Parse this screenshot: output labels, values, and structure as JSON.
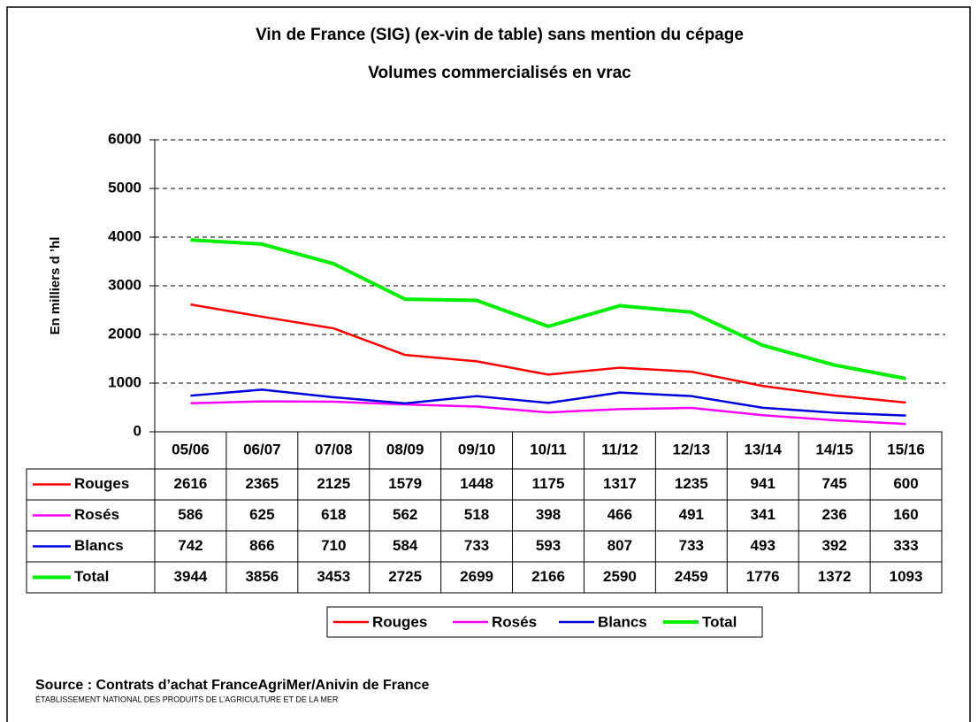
{
  "chart_data": {
    "type": "line",
    "title": "Vin de France (SIG) (ex-vin de table) sans mention du cépage",
    "subtitle": "Volumes commercialisés en vrac",
    "y_label": "En milliers d ’hl",
    "categories": [
      "05/06",
      "06/07",
      "07/08",
      "08/09",
      "09/10",
      "10/11",
      "11/12",
      "12/13",
      "13/14",
      "14/15",
      "15/16"
    ],
    "series": [
      {
        "name": "Rouges",
        "color": "#ff0000",
        "values": [
          2616,
          2365,
          2125,
          1579,
          1448,
          1175,
          1317,
          1235,
          941,
          745,
          600
        ]
      },
      {
        "name": "Rosés",
        "color": "#ff00ff",
        "values": [
          586,
          625,
          618,
          562,
          518,
          398,
          466,
          491,
          341,
          236,
          160
        ]
      },
      {
        "name": "Blancs",
        "color": "#0000dd",
        "values": [
          742,
          866,
          710,
          584,
          733,
          593,
          807,
          733,
          493,
          392,
          333
        ]
      },
      {
        "name": "Total",
        "color": "#00ee00",
        "values": [
          3944,
          3856,
          3453,
          2725,
          2699,
          2166,
          2590,
          2459,
          1776,
          1372,
          1093
        ]
      }
    ],
    "ylim": [
      0,
      6000
    ],
    "yticks": [
      0,
      1000,
      2000,
      3000,
      4000,
      5000,
      6000
    ],
    "grid": true,
    "source": "Source : Contrats d’achat FranceAgriMer/Anivin de France",
    "footer": "ÉTABLISSEMENT NATIONAL DES PRODUITS DE L’AGRICULTURE ET DE LA MER"
  }
}
